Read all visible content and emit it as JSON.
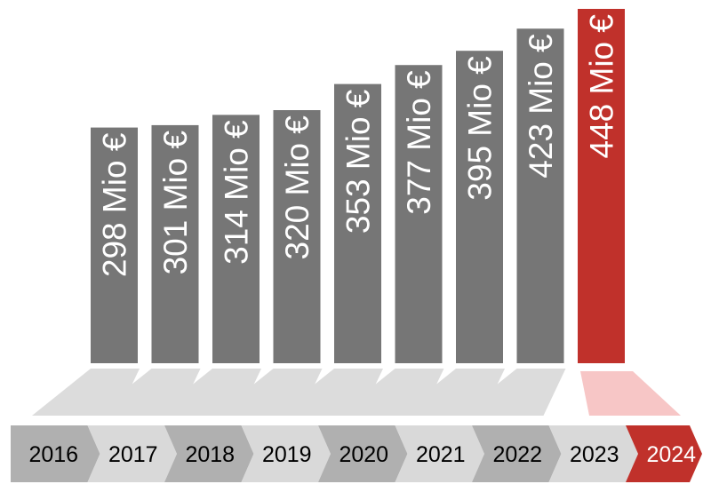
{
  "colors": {
    "bar": "#767676",
    "bar_highlight": "#c0312b",
    "shadow": "#dcdcdc",
    "shadow_highlight": "#f7c6c6",
    "arrow_dark": "#b0b0b0",
    "arrow_light": "#d9d9d9",
    "arrow_highlight": "#c0312b",
    "year_text": "#000000",
    "year_text_highlight": "#ffffff",
    "bar_text": "#ffffff"
  },
  "chart_data": {
    "type": "bar",
    "categories": [
      "2016",
      "2017",
      "2018",
      "2019",
      "2020",
      "2021",
      "2022",
      "2023",
      "2024"
    ],
    "values": [
      298,
      301,
      314,
      320,
      353,
      377,
      395,
      423,
      448
    ],
    "data_labels": [
      "298 Mio €",
      "301 Mio €",
      "314 Mio €",
      "320 Mio €",
      "353 Mio €",
      "377 Mio €",
      "395 Mio €",
      "423 Mio €",
      "448 Mio €"
    ],
    "highlight_index": 8,
    "title": "",
    "xlabel": "",
    "ylabel": "",
    "ylim": [
      0,
      448
    ],
    "grid": false,
    "legend": "none"
  }
}
